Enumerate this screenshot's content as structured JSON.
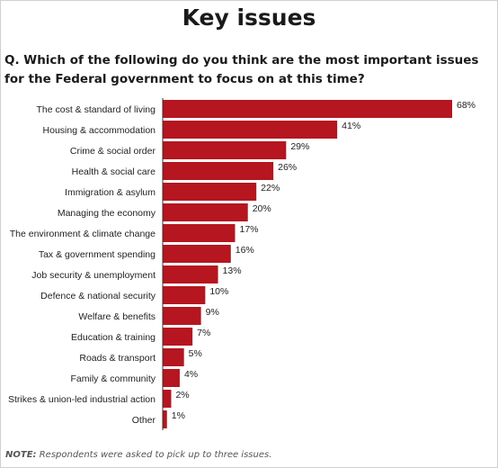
{
  "header": {
    "title": "Key issues",
    "question": "Q. Which of the following do you think are the most important issues for the Federal government to focus on at this time?"
  },
  "note": {
    "label": "NOTE:",
    "text": "Respondents were asked to pick up to three issues."
  },
  "chart_data": {
    "type": "bar",
    "orientation": "horizontal",
    "title": "",
    "xlabel": "",
    "ylabel": "",
    "bar_color": "#b5161f",
    "value_suffix": "%",
    "xlim": [
      0,
      68
    ],
    "categories": [
      "The cost & standard of living",
      "Housing & accommodation",
      "Crime & social order",
      "Health & social care",
      "Immigration & asylum",
      "Managing the economy",
      "The environment & climate change",
      "Tax & government spending",
      "Job security & unemployment",
      "Defence & national security",
      "Welfare & benefits",
      "Education & training",
      "Roads & transport",
      "Family & community",
      "Strikes & union-led industrial action",
      "Other"
    ],
    "values": [
      68,
      41,
      29,
      26,
      22,
      20,
      17,
      16,
      13,
      10,
      9,
      7,
      5,
      4,
      2,
      1
    ]
  }
}
